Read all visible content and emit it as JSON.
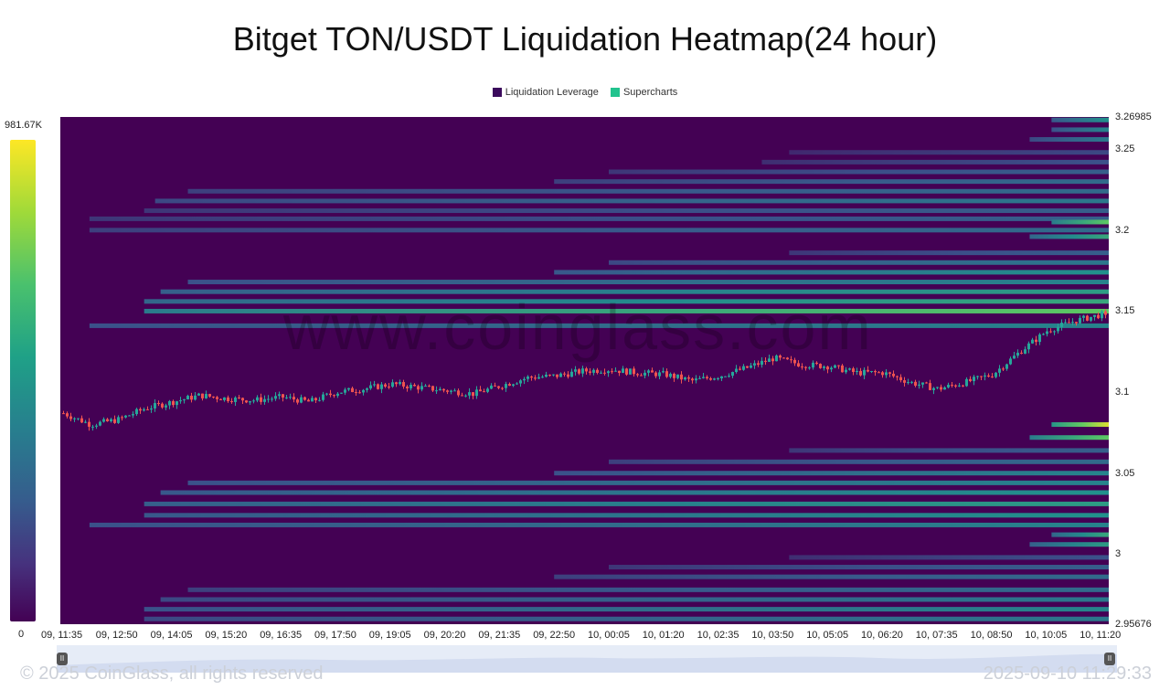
{
  "chart_data": {
    "type": "heatmap",
    "title": "Bitget TON/USDT Liquidation Heatmap(24 hour)",
    "legend": [
      {
        "label": "Liquidation Leverage",
        "color": "#3b0a5c"
      },
      {
        "label": "Supercharts",
        "color": "#22c38e"
      }
    ],
    "colorbar": {
      "max_label": "981.67K",
      "min_label": "0",
      "max": 981670,
      "min": 0
    },
    "y_axis": {
      "min": 2.95676,
      "max": 3.26985,
      "ticks": [
        {
          "label": "3.26985",
          "value": 3.26985
        },
        {
          "label": "3.25",
          "value": 3.25
        },
        {
          "label": "3.2",
          "value": 3.2
        },
        {
          "label": "3.15",
          "value": 3.15
        },
        {
          "label": "3.1",
          "value": 3.1
        },
        {
          "label": "3.05",
          "value": 3.05
        },
        {
          "label": "3",
          "value": 3.0
        },
        {
          "label": "2.95676",
          "value": 2.95676
        }
      ]
    },
    "x_axis": {
      "ticks": [
        "09, 11:35",
        "09, 12:50",
        "09, 14:05",
        "09, 15:20",
        "09, 16:35",
        "09, 17:50",
        "09, 19:05",
        "09, 20:20",
        "09, 21:35",
        "09, 22:50",
        "10, 00:05",
        "10, 01:20",
        "10, 02:35",
        "10, 03:50",
        "10, 05:05",
        "10, 06:20",
        "10, 07:35",
        "10, 08:50",
        "10, 10:05",
        "10, 11:20"
      ]
    },
    "price_path": [
      [
        0,
        3.087
      ],
      [
        0.5,
        3.08
      ],
      [
        1,
        3.083
      ],
      [
        1.5,
        3.09
      ],
      [
        2,
        3.094
      ],
      [
        2.5,
        3.098
      ],
      [
        3,
        3.096
      ],
      [
        3.5,
        3.095
      ],
      [
        4,
        3.097
      ],
      [
        4.5,
        3.094
      ],
      [
        5,
        3.1
      ],
      [
        5.5,
        3.102
      ],
      [
        6,
        3.105
      ],
      [
        6.5,
        3.103
      ],
      [
        7,
        3.101
      ],
      [
        7.5,
        3.099
      ],
      [
        8,
        3.104
      ],
      [
        8.5,
        3.109
      ],
      [
        9,
        3.11
      ],
      [
        9.5,
        3.113
      ],
      [
        10,
        3.114
      ],
      [
        10.5,
        3.112
      ],
      [
        11,
        3.111
      ],
      [
        11.5,
        3.107
      ],
      [
        12,
        3.11
      ],
      [
        12.5,
        3.115
      ],
      [
        13,
        3.121
      ],
      [
        13.5,
        3.117
      ],
      [
        14,
        3.116
      ],
      [
        14.5,
        3.112
      ],
      [
        15,
        3.112
      ],
      [
        15.5,
        3.106
      ],
      [
        16,
        3.102
      ],
      [
        16.5,
        3.106
      ],
      [
        17,
        3.111
      ],
      [
        17.5,
        3.125
      ],
      [
        18,
        3.138
      ],
      [
        18.5,
        3.144
      ],
      [
        19,
        3.148
      ],
      [
        19.5,
        3.133
      ],
      [
        19.8,
        3.137
      ]
    ],
    "heat_bands": [
      {
        "price": 3.268,
        "start": 18.1,
        "intensity": 0.5
      },
      {
        "price": 3.262,
        "start": 18.1,
        "intensity": 0.45
      },
      {
        "price": 3.256,
        "start": 17.7,
        "intensity": 0.4
      },
      {
        "price": 3.248,
        "start": 13.3,
        "intensity": 0.22
      },
      {
        "price": 3.242,
        "start": 12.8,
        "intensity": 0.25
      },
      {
        "price": 3.236,
        "start": 10.0,
        "intensity": 0.3
      },
      {
        "price": 3.23,
        "start": 9.0,
        "intensity": 0.35
      },
      {
        "price": 3.224,
        "start": 2.3,
        "intensity": 0.35
      },
      {
        "price": 3.218,
        "start": 1.7,
        "intensity": 0.4
      },
      {
        "price": 3.212,
        "start": 1.5,
        "intensity": 0.3
      },
      {
        "price": 3.207,
        "start": 0.5,
        "intensity": 0.3
      },
      {
        "price": 3.205,
        "start": 18.1,
        "intensity": 0.75
      },
      {
        "price": 3.2,
        "start": 0.5,
        "intensity": 0.35
      },
      {
        "price": 3.196,
        "start": 17.7,
        "intensity": 0.6
      },
      {
        "price": 3.186,
        "start": 13.3,
        "intensity": 0.3
      },
      {
        "price": 3.18,
        "start": 10.0,
        "intensity": 0.4
      },
      {
        "price": 3.174,
        "start": 9.0,
        "intensity": 0.5
      },
      {
        "price": 3.168,
        "start": 2.3,
        "intensity": 0.45
      },
      {
        "price": 3.162,
        "start": 1.8,
        "intensity": 0.55
      },
      {
        "price": 3.156,
        "start": 1.5,
        "intensity": 0.6
      },
      {
        "price": 3.15,
        "start": 1.5,
        "intensity": 0.75
      },
      {
        "price": 3.141,
        "start": 0.5,
        "intensity": 0.45
      },
      {
        "price": 3.08,
        "start": 18.1,
        "intensity": 0.95
      },
      {
        "price": 3.072,
        "start": 17.7,
        "intensity": 0.75
      },
      {
        "price": 3.064,
        "start": 13.3,
        "intensity": 0.3
      },
      {
        "price": 3.057,
        "start": 10.0,
        "intensity": 0.35
      },
      {
        "price": 3.05,
        "start": 9.0,
        "intensity": 0.45
      },
      {
        "price": 3.044,
        "start": 2.3,
        "intensity": 0.45
      },
      {
        "price": 3.038,
        "start": 1.8,
        "intensity": 0.5
      },
      {
        "price": 3.031,
        "start": 1.5,
        "intensity": 0.55
      },
      {
        "price": 3.024,
        "start": 1.5,
        "intensity": 0.5
      },
      {
        "price": 3.018,
        "start": 0.5,
        "intensity": 0.45
      },
      {
        "price": 3.012,
        "start": 18.1,
        "intensity": 0.6
      },
      {
        "price": 3.006,
        "start": 17.7,
        "intensity": 0.55
      },
      {
        "price": 2.998,
        "start": 13.3,
        "intensity": 0.25
      },
      {
        "price": 2.992,
        "start": 10.0,
        "intensity": 0.3
      },
      {
        "price": 2.986,
        "start": 9.0,
        "intensity": 0.35
      },
      {
        "price": 2.978,
        "start": 2.3,
        "intensity": 0.35
      },
      {
        "price": 2.972,
        "start": 1.8,
        "intensity": 0.4
      },
      {
        "price": 2.966,
        "start": 1.5,
        "intensity": 0.45
      },
      {
        "price": 2.96,
        "start": 1.5,
        "intensity": 0.4
      }
    ]
  },
  "watermark": "www.coinglass.com",
  "footer": {
    "copyright": "© 2025 CoinGlass, all rights reserved",
    "timestamp": "2025-09-10 11:29:33"
  },
  "scrollbar": {
    "left_handle": "II",
    "right_handle": "II"
  }
}
